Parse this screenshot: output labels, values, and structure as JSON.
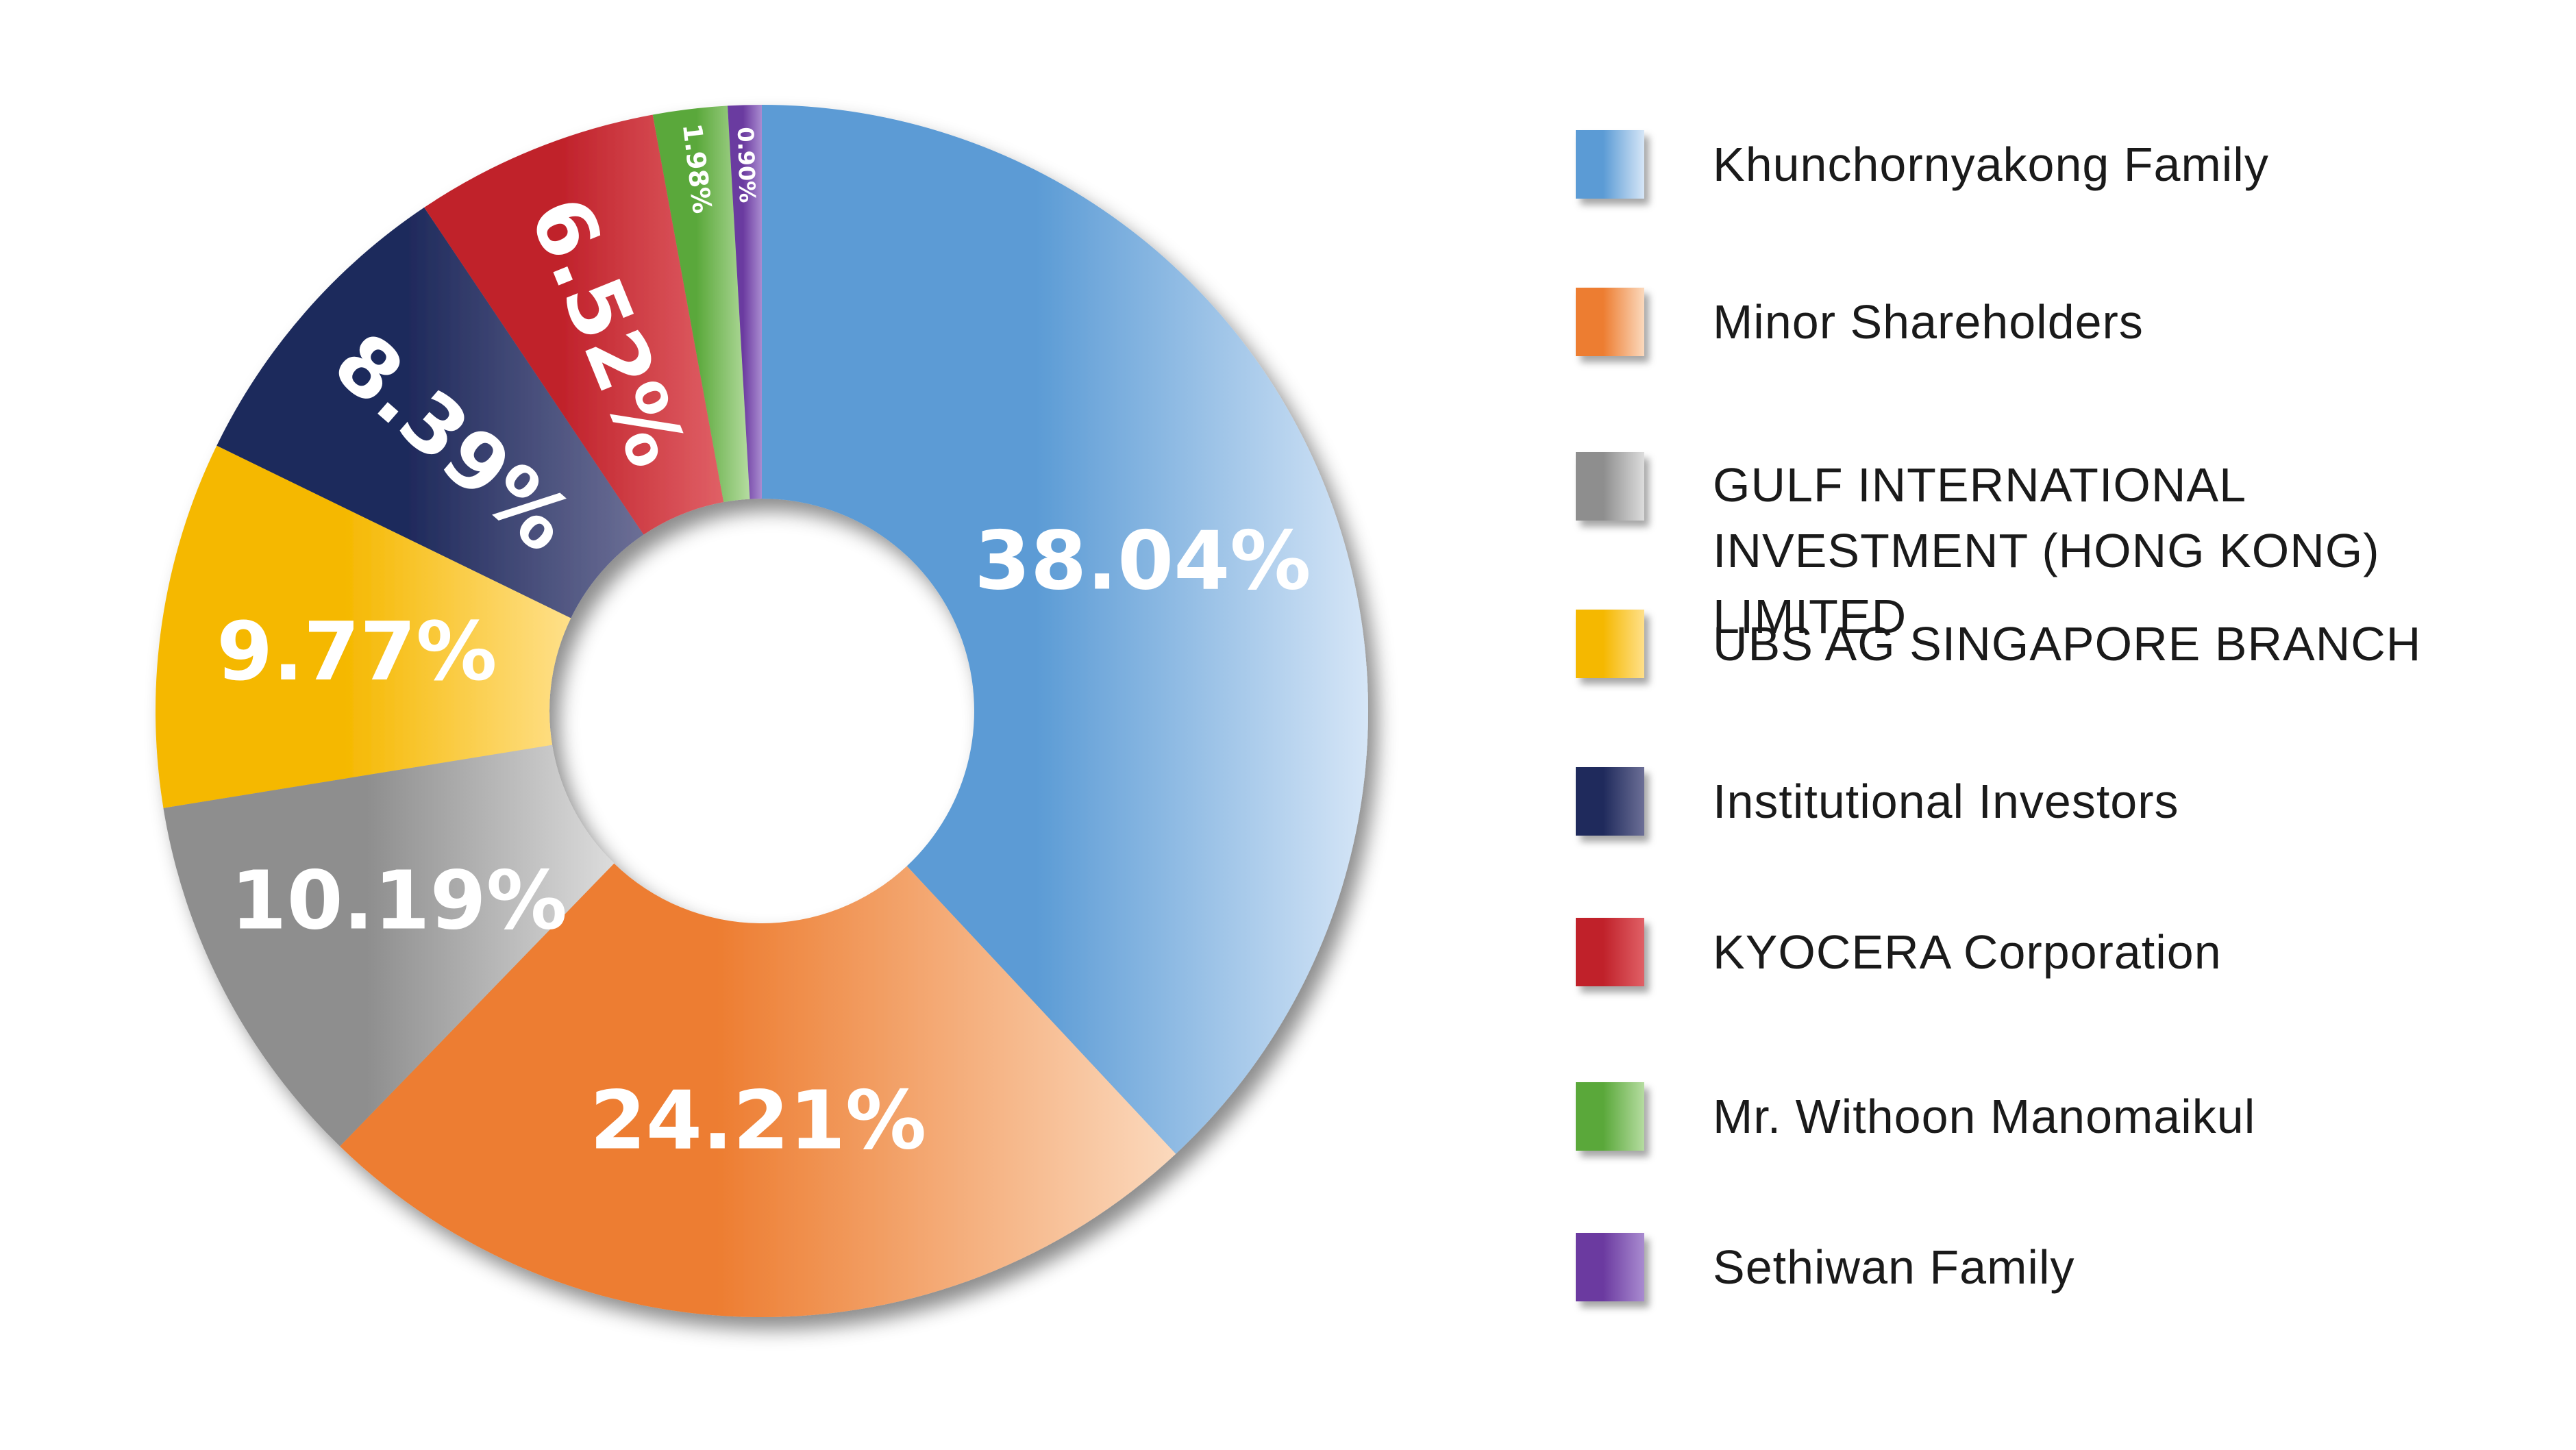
{
  "chart_data": {
    "type": "pie",
    "donut": true,
    "legend_position": "right",
    "slices": [
      {
        "name": "Khunchornyakong Family",
        "value": 38.04,
        "label": "38.04%",
        "color": "#5b9bd5",
        "color_light": "#d6e6f7"
      },
      {
        "name": "Minor Shareholders",
        "value": 24.21,
        "label": "24.21%",
        "color": "#ed7d31",
        "color_light": "#fbd9bd"
      },
      {
        "name": "GULF INTERNATIONAL INVESTMENT (HONG KONG) LIMITED",
        "value": 10.19,
        "label": "10.19%",
        "color": "#8e8e8e",
        "color_light": "#dcdcdc"
      },
      {
        "name": "UBS AG SINGAPORE BRANCH",
        "value": 9.77,
        "label": "9.77%",
        "color": "#f5b800",
        "color_light": "#ffe08a"
      },
      {
        "name": "Institutional Investors",
        "value": 8.39,
        "label": "8.39%",
        "color": "#1f2a5c",
        "color_light": "#6c6f96"
      },
      {
        "name": "KYOCERA Corporation",
        "value": 6.52,
        "label": "6.52%",
        "color": "#c0212a",
        "color_light": "#e06066"
      },
      {
        "name": "Mr. Withoon Manomaikul",
        "value": 1.98,
        "label": "1.98%",
        "color": "#5aa83a",
        "color_light": "#b5dca0"
      },
      {
        "name": "Sethiwan Family",
        "value": 0.9,
        "label": "0.90%",
        "color": "#6b3aa0",
        "color_light": "#a98bd0"
      }
    ]
  },
  "legend": {
    "items": [
      {
        "lines": [
          "Khunchornyakong Family"
        ],
        "color": "#5b9bd5",
        "color_light": "#d6e6f7"
      },
      {
        "lines": [
          "Minor Shareholders"
        ],
        "color": "#ed7d31",
        "color_light": "#fbd9bd"
      },
      {
        "lines": [
          "GULF INTERNATIONAL",
          "INVESTMENT (HONG KONG) LIMITED"
        ],
        "color": "#8e8e8e",
        "color_light": "#dcdcdc"
      },
      {
        "lines": [
          "UBS AG SINGAPORE BRANCH"
        ],
        "color": "#f5b800",
        "color_light": "#ffe08a"
      },
      {
        "lines": [
          "Institutional Investors"
        ],
        "color": "#1f2a5c",
        "color_light": "#6c6f96"
      },
      {
        "lines": [
          "KYOCERA Corporation"
        ],
        "color": "#c0212a",
        "color_light": "#e06066"
      },
      {
        "lines": [
          "Mr. Withoon Manomaikul"
        ],
        "color": "#5aa83a",
        "color_light": "#b5dca0"
      },
      {
        "lines": [
          "Sethiwan Family"
        ],
        "color": "#6b3aa0",
        "color_light": "#a98bd0"
      }
    ]
  }
}
